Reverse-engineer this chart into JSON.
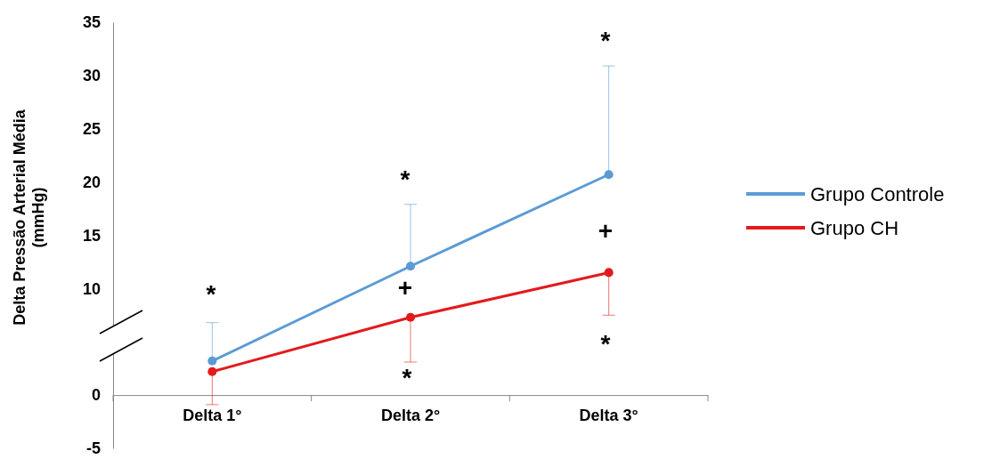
{
  "chart_data": {
    "type": "line",
    "ylabel": "Delta Pressão Arterial Média\n(mmHg)",
    "categories": [
      "Delta 1°",
      "Delta 2°",
      "Delta 3°"
    ],
    "series": [
      {
        "name": "Grupo Controle",
        "color": "#5b9bd5",
        "values": [
          3.2,
          12.1,
          20.7
        ],
        "errors": [
          [
            3.2,
            6.8
          ],
          [
            12.1,
            17.9
          ],
          [
            20.7,
            30.9
          ]
        ]
      },
      {
        "name": "Grupo CH",
        "color": "#e31a1c",
        "values": [
          2.2,
          7.3,
          11.5
        ],
        "errors": [
          [
            -0.9,
            2.2
          ],
          [
            3.1,
            7.3
          ],
          [
            7.5,
            11.5
          ]
        ]
      }
    ],
    "ylim": [
      -5,
      35
    ],
    "yticks": [
      -5,
      0,
      10,
      15,
      20,
      25,
      30,
      35
    ],
    "grid": false,
    "legend": "right",
    "marker": "circle",
    "line_style": "solid",
    "annotations": [
      "*",
      "*",
      "*",
      "+",
      "+",
      "*",
      "*"
    ]
  }
}
